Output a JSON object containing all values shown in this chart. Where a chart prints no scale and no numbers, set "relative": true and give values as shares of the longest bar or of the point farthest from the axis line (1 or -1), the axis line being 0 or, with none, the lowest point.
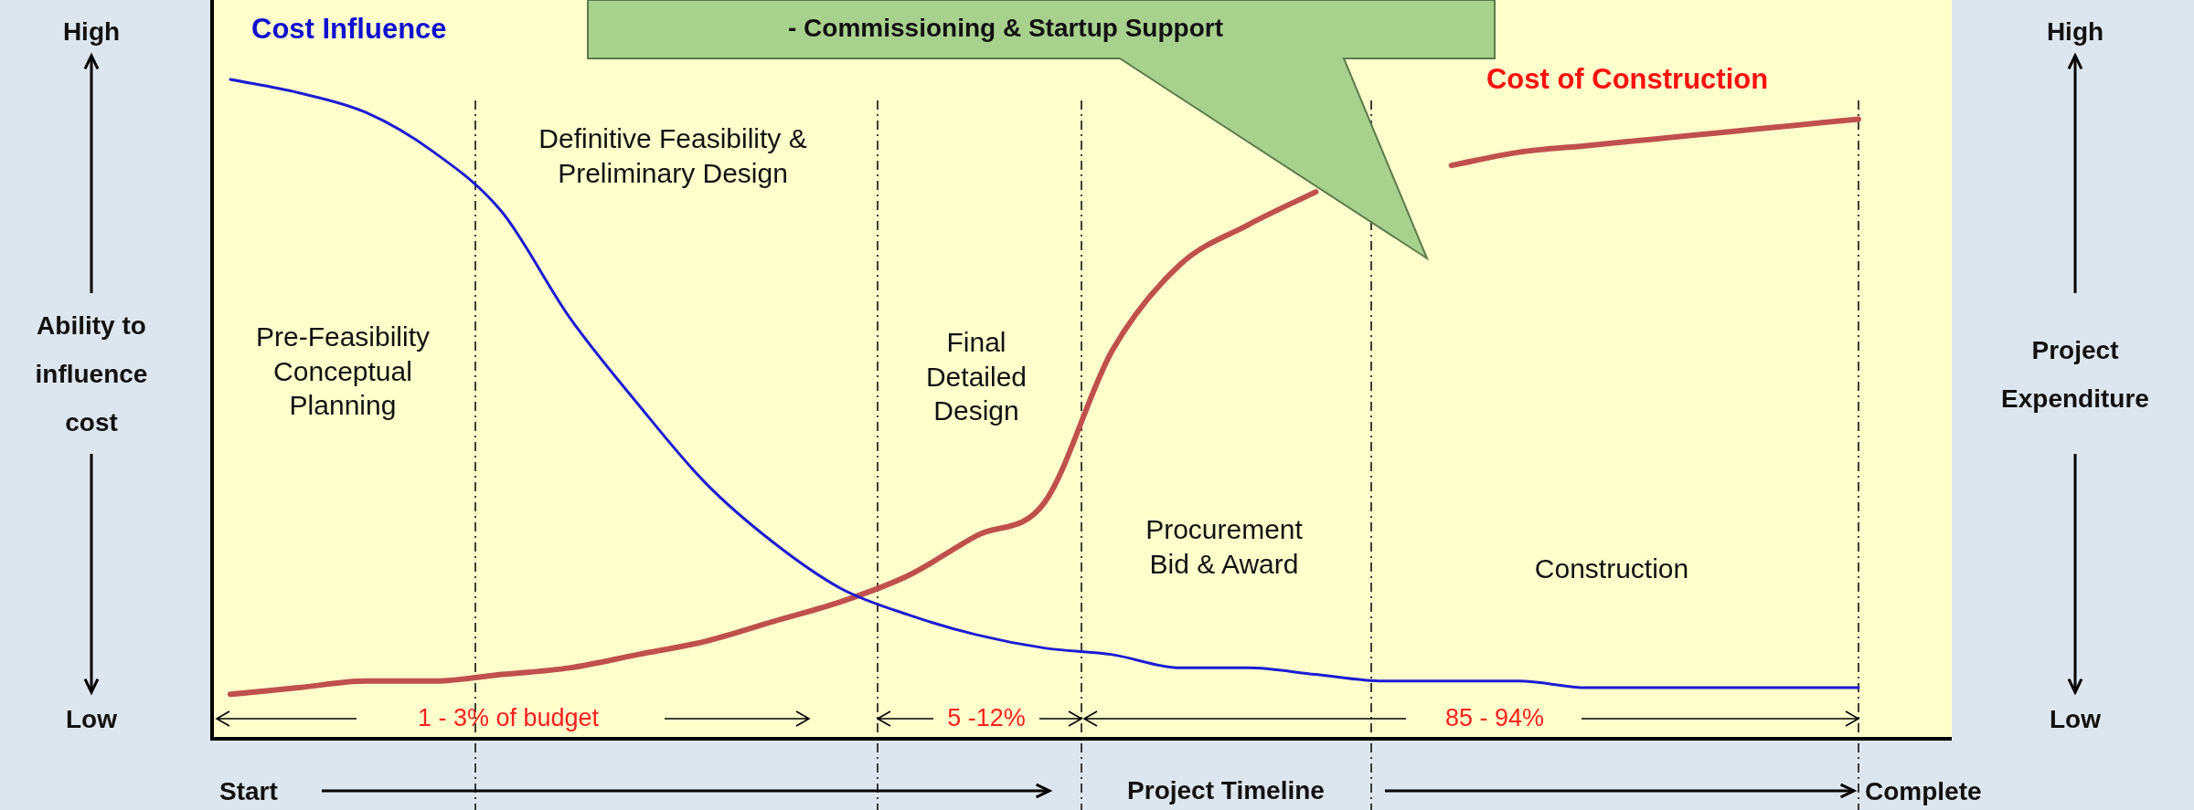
{
  "chart_data": {
    "type": "line",
    "relative": true,
    "legend": false,
    "marker": "none",
    "line_style": "solid",
    "xlabel": "Project Timeline",
    "ylabel": "Ability to influence cost",
    "y2label": "Project Expenditure",
    "categories": [
      null,
      null,
      null,
      null,
      null,
      null,
      null,
      null,
      null,
      null,
      null,
      null,
      null,
      null,
      null,
      null,
      null,
      null,
      null,
      null,
      null,
      null,
      null,
      null,
      null
    ],
    "series": [
      {
        "name": "Cost Influence",
        "color": "#1c1cd4",
        "values": [
          1.0,
          0.98,
          0.95,
          0.89,
          0.8,
          0.64,
          0.51,
          0.39,
          0.3,
          0.23,
          0.19,
          0.16,
          0.14,
          0.13,
          0.11,
          0.11,
          0.1,
          0.09,
          0.09,
          0.09,
          0.08,
          0.08,
          0.08,
          0.08,
          0.08
        ]
      },
      {
        "name": "Cost of Construction",
        "color": "#c0504d",
        "values": [
          0.07,
          0.08,
          0.09,
          0.09,
          0.1,
          0.11,
          0.13,
          0.15,
          0.18,
          0.21,
          0.25,
          0.31,
          0.36,
          0.59,
          0.72,
          0.78,
          0.83,
          null,
          0.87,
          0.89,
          0.9,
          0.91,
          0.92,
          0.93,
          0.94
        ]
      }
    ],
    "annotations": [
      "Pre-Feasibility\nConceptual\nPlanning",
      "Definitive Feasibility &\nPreliminary Design",
      "Final\nDetailed\nDesign",
      "Procurement\nBid & Award",
      "Construction",
      "1 - 3% of budget",
      "5 -12%",
      "85 - 94%",
      "High",
      "Low",
      "High",
      "Low",
      "Start",
      "Complete",
      "- Commissioning & Startup Support"
    ]
  }
}
